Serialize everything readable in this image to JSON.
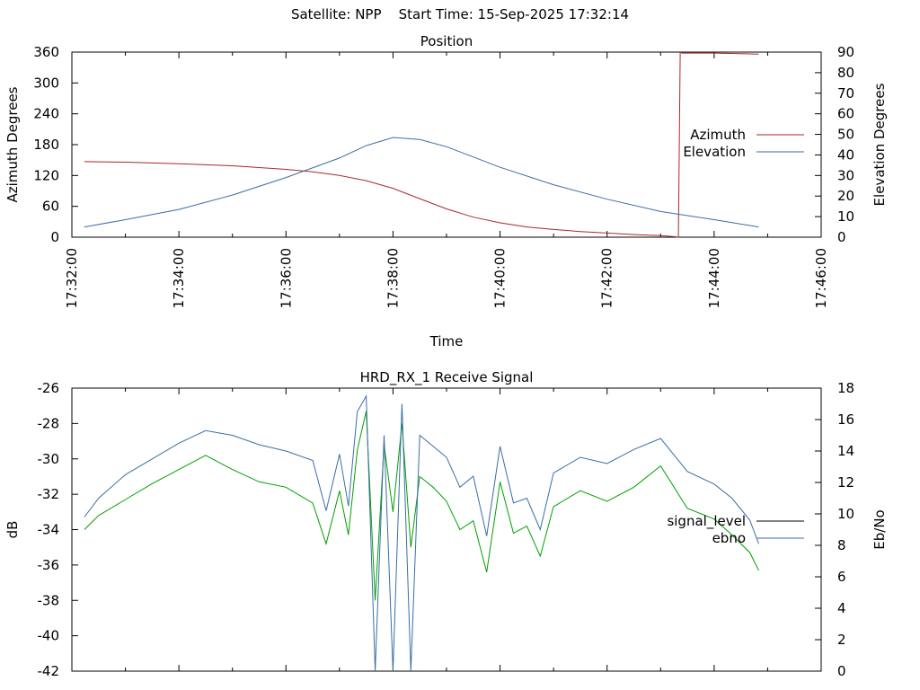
{
  "page_title": "Satellite: NPP    Start Time: 15-Sep-2025 17:32:14",
  "chart_data": [
    {
      "type": "line",
      "title": "Position",
      "xlabel": "Time",
      "ylabel": "Azimuth Degrees",
      "y2label": "Elevation Degrees",
      "ylim": [
        0,
        360
      ],
      "y2lim": [
        0,
        90
      ],
      "xlim": [
        "17:32:00",
        "17:46:00"
      ],
      "yticks": [
        "0",
        "60",
        "120",
        "180",
        "240",
        "300",
        "360"
      ],
      "y2ticks": [
        "0",
        "10",
        "20",
        "30",
        "40",
        "50",
        "60",
        "70",
        "80",
        "90"
      ],
      "xticks": [
        "17:32:00",
        "17:34:00",
        "17:36:00",
        "17:38:00",
        "17:40:00",
        "17:42:00",
        "17:44:00",
        "17:46:00"
      ],
      "legend_position": "right",
      "series": [
        {
          "name": "Azimuth",
          "axis": "left",
          "color": "#a52a2a",
          "x": [
            "17:32:14",
            "17:33:00",
            "17:34:00",
            "17:35:00",
            "17:36:00",
            "17:36:30",
            "17:37:00",
            "17:37:30",
            "17:38:00",
            "17:38:30",
            "17:39:00",
            "17:39:30",
            "17:40:00",
            "17:40:30",
            "17:41:00",
            "17:41:30",
            "17:42:00",
            "17:42:30",
            "17:43:00",
            "17:43:15",
            "17:43:20",
            "17:43:22",
            "17:43:24",
            "17:44:00",
            "17:44:30",
            "17:44:50"
          ],
          "values": [
            147,
            146,
            143,
            139,
            132,
            127,
            120,
            110,
            95,
            75,
            55,
            39,
            28,
            20,
            15,
            11,
            8,
            5,
            3,
            1,
            0,
            360,
            358,
            358,
            357,
            356
          ]
        },
        {
          "name": "Elevation",
          "axis": "right",
          "color": "#3a6ea5",
          "x": [
            "17:32:14",
            "17:33:00",
            "17:34:00",
            "17:35:00",
            "17:36:00",
            "17:37:00",
            "17:37:30",
            "17:38:00",
            "17:38:30",
            "17:39:00",
            "17:39:30",
            "17:40:00",
            "17:41:00",
            "17:42:00",
            "17:43:00",
            "17:44:00",
            "17:44:50"
          ],
          "values": [
            5,
            8.5,
            13.5,
            20.5,
            29,
            38.5,
            44.5,
            48.5,
            47.5,
            44,
            39,
            34,
            25.5,
            18.5,
            12.5,
            8.5,
            5
          ]
        }
      ]
    },
    {
      "type": "line",
      "title": "HRD_RX_1 Receive Signal",
      "ylabel": "dB",
      "y2label": "Eb/No",
      "ylim": [
        -42,
        -26
      ],
      "y2lim": [
        0,
        18
      ],
      "xlim": [
        "17:32:00",
        "17:46:00"
      ],
      "yticks": [
        "-42",
        "-40",
        "-38",
        "-36",
        "-34",
        "-32",
        "-30",
        "-28",
        "-26"
      ],
      "y2ticks": [
        "0",
        "2",
        "4",
        "6",
        "8",
        "10",
        "12",
        "14",
        "16",
        "18"
      ],
      "legend_position": "right",
      "series": [
        {
          "name": "signal_level",
          "axis": "left",
          "color": "#00a000",
          "x": [
            "17:32:14",
            "17:32:30",
            "17:33:00",
            "17:33:30",
            "17:34:00",
            "17:34:30",
            "17:35:00",
            "17:35:30",
            "17:36:00",
            "17:36:30",
            "17:36:45",
            "17:37:00",
            "17:37:10",
            "17:37:20",
            "17:37:30",
            "17:37:40",
            "17:37:50",
            "17:38:00",
            "17:38:10",
            "17:38:20",
            "17:38:30",
            "17:38:45",
            "17:39:00",
            "17:39:15",
            "17:39:30",
            "17:39:45",
            "17:40:00",
            "17:40:15",
            "17:40:30",
            "17:40:45",
            "17:41:00",
            "17:41:30",
            "17:42:00",
            "17:42:30",
            "17:43:00",
            "17:43:30",
            "17:44:00",
            "17:44:20",
            "17:44:40",
            "17:44:50"
          ],
          "values": [
            -34,
            -33.2,
            -32.3,
            -31.4,
            -30.6,
            -29.8,
            -30.6,
            -31.3,
            -31.6,
            -32.5,
            -34.8,
            -31.8,
            -34.3,
            -29.5,
            -27.3,
            -38,
            -29.2,
            -33,
            -28,
            -35,
            -31,
            -31.6,
            -32.4,
            -34,
            -33.5,
            -36.4,
            -31.3,
            -34.2,
            -33.8,
            -35.5,
            -32.7,
            -31.8,
            -32.4,
            -31.6,
            -30.4,
            -32.8,
            -33.4,
            -34.3,
            -35.3,
            -36.3
          ]
        },
        {
          "name": "ebno",
          "axis": "right",
          "color": "#3a6ea5",
          "x": [
            "17:32:14",
            "17:32:30",
            "17:33:00",
            "17:33:30",
            "17:34:00",
            "17:34:30",
            "17:35:00",
            "17:35:30",
            "17:36:00",
            "17:36:30",
            "17:36:45",
            "17:37:00",
            "17:37:10",
            "17:37:20",
            "17:37:30",
            "17:37:40",
            "17:37:50",
            "17:38:00",
            "17:38:10",
            "17:38:20",
            "17:38:30",
            "17:38:45",
            "17:39:00",
            "17:39:15",
            "17:39:30",
            "17:39:45",
            "17:40:00",
            "17:40:15",
            "17:40:30",
            "17:40:45",
            "17:41:00",
            "17:41:30",
            "17:42:00",
            "17:42:30",
            "17:43:00",
            "17:43:30",
            "17:44:00",
            "17:44:20",
            "17:44:40",
            "17:44:50"
          ],
          "values": [
            9.8,
            11,
            12.5,
            13.5,
            14.5,
            15.3,
            15,
            14.4,
            14,
            13.4,
            10.2,
            13.8,
            10.5,
            16.5,
            17.5,
            0,
            15,
            0,
            17,
            0,
            15,
            14.3,
            13.6,
            11.7,
            12.4,
            8.6,
            14.3,
            10.7,
            11,
            9,
            12.6,
            13.6,
            13.2,
            14.1,
            14.8,
            12.7,
            11.9,
            11,
            9.6,
            8.1
          ]
        }
      ]
    }
  ]
}
